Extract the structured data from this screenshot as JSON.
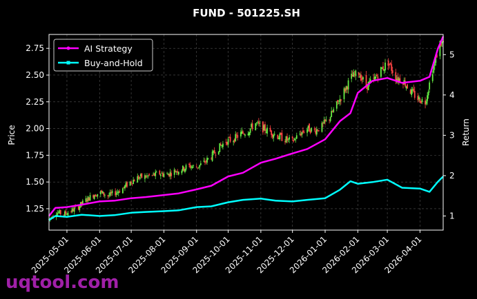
{
  "chart_data": {
    "type": "line",
    "title": "FUND - 501225.SH",
    "ylabel": "Price",
    "y2label": "Return",
    "background": "#000000",
    "grid": true,
    "legend_position": "top-left",
    "x_ticks": [
      "2025-05-01",
      "2025-06-01",
      "2025-07-01",
      "2025-08-01",
      "2025-09-01",
      "2025-10-01",
      "2025-11-01",
      "2025-12-01",
      "2026-01-01",
      "2026-02-01",
      "2026-03-01",
      "2026-04-01"
    ],
    "x_range": [
      "2025-04-14",
      "2026-04-23"
    ],
    "ylim": [
      1.05,
      2.88
    ],
    "y_ticks": [
      1.25,
      1.5,
      1.75,
      2.0,
      2.25,
      2.5,
      2.75
    ],
    "y2lim": [
      0.65,
      5.5
    ],
    "y2_ticks": [
      1,
      2,
      3,
      4,
      5
    ],
    "candles": {
      "up_color": "#66ee44",
      "down_color": "#ff4444",
      "approx_close": [
        [
          "2025-04-14",
          1.15
        ],
        [
          "2025-04-20",
          1.22
        ],
        [
          "2025-04-28",
          1.2
        ],
        [
          "2025-05-05",
          1.23
        ],
        [
          "2025-05-12",
          1.27
        ],
        [
          "2025-05-19",
          1.33
        ],
        [
          "2025-05-26",
          1.38
        ],
        [
          "2025-06-02",
          1.4
        ],
        [
          "2025-06-09",
          1.37
        ],
        [
          "2025-06-16",
          1.4
        ],
        [
          "2025-06-23",
          1.44
        ],
        [
          "2025-06-30",
          1.5
        ],
        [
          "2025-07-07",
          1.54
        ],
        [
          "2025-07-14",
          1.55
        ],
        [
          "2025-07-21",
          1.56
        ],
        [
          "2025-07-28",
          1.58
        ],
        [
          "2025-08-04",
          1.57
        ],
        [
          "2025-08-11",
          1.6
        ],
        [
          "2025-08-18",
          1.62
        ],
        [
          "2025-08-25",
          1.65
        ],
        [
          "2025-09-01",
          1.64
        ],
        [
          "2025-09-08",
          1.68
        ],
        [
          "2025-09-15",
          1.74
        ],
        [
          "2025-09-22",
          1.82
        ],
        [
          "2025-09-29",
          1.88
        ],
        [
          "2025-10-06",
          1.9
        ],
        [
          "2025-10-13",
          1.95
        ],
        [
          "2025-10-20",
          1.98
        ],
        [
          "2025-10-27",
          2.05
        ],
        [
          "2025-11-03",
          2.0
        ],
        [
          "2025-11-10",
          1.97
        ],
        [
          "2025-11-17",
          1.93
        ],
        [
          "2025-11-24",
          1.9
        ],
        [
          "2025-12-01",
          1.88
        ],
        [
          "2025-12-08",
          1.95
        ],
        [
          "2025-12-15",
          2.0
        ],
        [
          "2025-12-22",
          1.98
        ],
        [
          "2025-12-29",
          2.02
        ],
        [
          "2026-01-05",
          2.1
        ],
        [
          "2026-01-12",
          2.22
        ],
        [
          "2026-01-19",
          2.35
        ],
        [
          "2026-01-26",
          2.48
        ],
        [
          "2026-02-02",
          2.52
        ],
        [
          "2026-02-09",
          2.4
        ],
        [
          "2026-02-16",
          2.45
        ],
        [
          "2026-02-23",
          2.55
        ],
        [
          "2026-03-02",
          2.62
        ],
        [
          "2026-03-09",
          2.48
        ],
        [
          "2026-03-16",
          2.45
        ],
        [
          "2026-03-23",
          2.35
        ],
        [
          "2026-03-30",
          2.28
        ],
        [
          "2026-04-06",
          2.25
        ],
        [
          "2026-04-13",
          2.55
        ],
        [
          "2026-04-20",
          2.8
        ]
      ]
    },
    "series": [
      {
        "name": "AI Strategy",
        "color": "#ff00ff",
        "marker": "circle",
        "axis": "return",
        "points": [
          [
            "2025-04-14",
            1.0
          ],
          [
            "2025-04-20",
            1.2
          ],
          [
            "2025-05-01",
            1.22
          ],
          [
            "2025-05-15",
            1.28
          ],
          [
            "2025-06-01",
            1.36
          ],
          [
            "2025-06-15",
            1.38
          ],
          [
            "2025-07-01",
            1.44
          ],
          [
            "2025-07-15",
            1.47
          ],
          [
            "2025-08-01",
            1.52
          ],
          [
            "2025-08-15",
            1.56
          ],
          [
            "2025-09-01",
            1.66
          ],
          [
            "2025-09-15",
            1.75
          ],
          [
            "2025-10-01",
            1.98
          ],
          [
            "2025-10-15",
            2.07
          ],
          [
            "2025-11-01",
            2.32
          ],
          [
            "2025-11-15",
            2.42
          ],
          [
            "2025-12-01",
            2.55
          ],
          [
            "2025-12-15",
            2.66
          ],
          [
            "2026-01-01",
            2.9
          ],
          [
            "2026-01-15",
            3.35
          ],
          [
            "2026-01-25",
            3.55
          ],
          [
            "2026-02-01",
            4.05
          ],
          [
            "2026-02-15",
            4.35
          ],
          [
            "2026-03-01",
            4.42
          ],
          [
            "2026-03-15",
            4.3
          ],
          [
            "2026-04-01",
            4.35
          ],
          [
            "2026-04-10",
            4.45
          ],
          [
            "2026-04-18",
            5.15
          ],
          [
            "2026-04-23",
            5.45
          ]
        ]
      },
      {
        "name": "Buy-and-Hold",
        "color": "#00ffff",
        "marker": "square",
        "axis": "return",
        "points": [
          [
            "2025-04-14",
            0.9
          ],
          [
            "2025-04-20",
            1.0
          ],
          [
            "2025-05-01",
            0.98
          ],
          [
            "2025-05-15",
            1.03
          ],
          [
            "2025-06-01",
            1.0
          ],
          [
            "2025-06-15",
            1.02
          ],
          [
            "2025-07-01",
            1.08
          ],
          [
            "2025-07-15",
            1.1
          ],
          [
            "2025-08-01",
            1.12
          ],
          [
            "2025-08-15",
            1.14
          ],
          [
            "2025-09-01",
            1.22
          ],
          [
            "2025-09-15",
            1.24
          ],
          [
            "2025-10-01",
            1.34
          ],
          [
            "2025-10-15",
            1.4
          ],
          [
            "2025-11-01",
            1.43
          ],
          [
            "2025-11-15",
            1.38
          ],
          [
            "2025-12-01",
            1.36
          ],
          [
            "2025-12-15",
            1.4
          ],
          [
            "2026-01-01",
            1.44
          ],
          [
            "2026-01-15",
            1.65
          ],
          [
            "2026-01-25",
            1.86
          ],
          [
            "2026-02-01",
            1.8
          ],
          [
            "2026-02-15",
            1.84
          ],
          [
            "2026-03-01",
            1.9
          ],
          [
            "2026-03-15",
            1.7
          ],
          [
            "2026-04-01",
            1.68
          ],
          [
            "2026-04-10",
            1.6
          ],
          [
            "2026-04-18",
            1.85
          ],
          [
            "2026-04-23",
            1.98
          ]
        ]
      }
    ]
  },
  "watermark": "uqtool.com"
}
